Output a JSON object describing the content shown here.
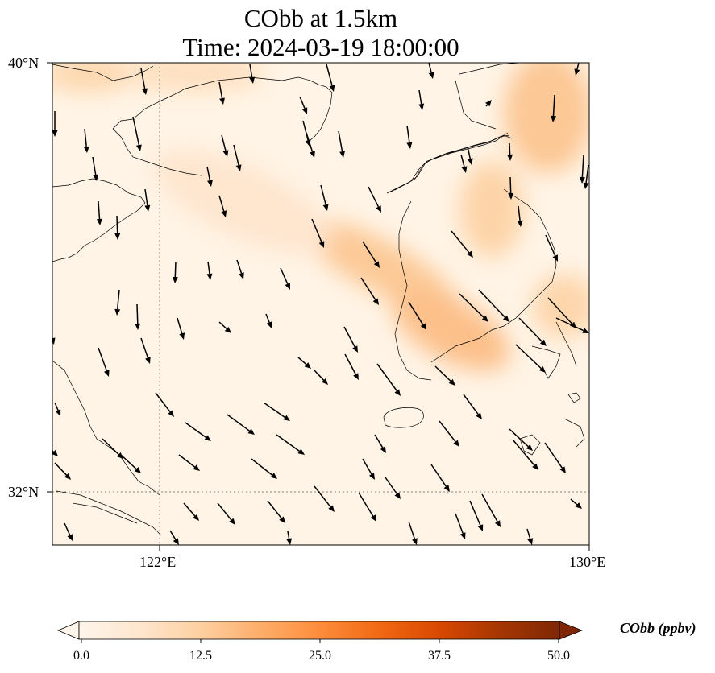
{
  "title": {
    "line1": "CObb at 1.5km",
    "line2": "Time: 2024-03-19 18:00:00"
  },
  "map": {
    "lon_range": [
      119,
      130
    ],
    "lat_range": [
      31,
      40
    ],
    "gridlines": {
      "lon": [
        122
      ],
      "lat": [
        32
      ],
      "style": "dotted"
    },
    "lon_tick_labels": [
      {
        "value": 122,
        "text": "122°E"
      },
      {
        "value": 130,
        "text": "130°E"
      }
    ],
    "lat_tick_labels": [
      {
        "value": 40,
        "text": "40°N"
      },
      {
        "value": 32,
        "text": "32°N"
      }
    ],
    "background_color": "#fff4e6",
    "plume_color": "#fdc18a",
    "wind_arrow_color": "#000000"
  },
  "colorbar": {
    "label": "CObb (ppbv)",
    "range": [
      0,
      50
    ],
    "ticks": [
      "0.0",
      "12.5",
      "25.0",
      "37.5",
      "50.0"
    ],
    "colors": [
      "#fff5eb",
      "#fee6ce",
      "#fdd0a2",
      "#fdae6b",
      "#fd8d3c",
      "#f16913",
      "#d94801",
      "#a63603",
      "#7f2704"
    ],
    "extend": "both"
  }
}
